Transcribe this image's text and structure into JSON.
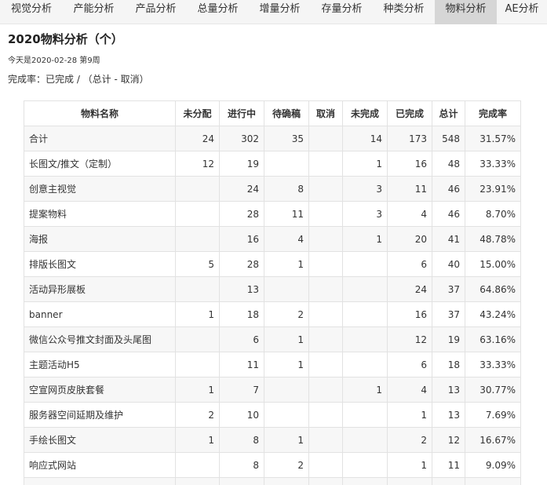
{
  "tabs": [
    {
      "label": "视觉分析",
      "active": false
    },
    {
      "label": "产能分析",
      "active": false
    },
    {
      "label": "产品分析",
      "active": false
    },
    {
      "label": "总量分析",
      "active": false
    },
    {
      "label": "增量分析",
      "active": false
    },
    {
      "label": "存量分析",
      "active": false
    },
    {
      "label": "种类分析",
      "active": false
    },
    {
      "label": "物料分析",
      "active": true
    },
    {
      "label": "AE分析",
      "active": false
    }
  ],
  "page_title": "2020物料分析（个）",
  "date_line": "今天是2020-02-28 第9周",
  "rate_line": "完成率：已完成 / （总计 - 取消）",
  "table": {
    "headers": [
      "物料名称",
      "未分配",
      "进行中",
      "待确稿",
      "取消",
      "未完成",
      "已完成",
      "总计",
      "完成率"
    ],
    "rows": [
      [
        "合计",
        "24",
        "302",
        "35",
        "",
        "14",
        "173",
        "548",
        "31.57%"
      ],
      [
        "长图文/推文（定制）",
        "12",
        "19",
        "",
        "",
        "1",
        "16",
        "48",
        "33.33%"
      ],
      [
        "创意主视觉",
        "",
        "24",
        "8",
        "",
        "3",
        "11",
        "46",
        "23.91%"
      ],
      [
        "提案物料",
        "",
        "28",
        "11",
        "",
        "3",
        "4",
        "46",
        "8.70%"
      ],
      [
        "海报",
        "",
        "16",
        "4",
        "",
        "1",
        "20",
        "41",
        "48.78%"
      ],
      [
        "排版长图文",
        "5",
        "28",
        "1",
        "",
        "",
        "6",
        "40",
        "15.00%"
      ],
      [
        "活动异形展板",
        "",
        "13",
        "",
        "",
        "",
        "24",
        "37",
        "64.86%"
      ],
      [
        "banner",
        "1",
        "18",
        "2",
        "",
        "",
        "16",
        "37",
        "43.24%"
      ],
      [
        "微信公众号推文封面及头尾图",
        "",
        "6",
        "1",
        "",
        "",
        "12",
        "19",
        "63.16%"
      ],
      [
        "主题活动H5",
        "",
        "11",
        "1",
        "",
        "",
        "6",
        "18",
        "33.33%"
      ],
      [
        "空宣网页皮肤套餐",
        "1",
        "7",
        "",
        "",
        "1",
        "4",
        "13",
        "30.77%"
      ],
      [
        "服务器空间延期及维护",
        "2",
        "10",
        "",
        "",
        "",
        "1",
        "13",
        "7.69%"
      ],
      [
        "手绘长图文",
        "1",
        "8",
        "1",
        "",
        "",
        "2",
        "12",
        "16.67%"
      ],
      [
        "响应式网站",
        "",
        "8",
        "2",
        "",
        "",
        "1",
        "11",
        "9.09%"
      ],
      [
        "",
        "",
        "",
        "",
        "",
        "",
        "",
        "",
        ""
      ]
    ]
  }
}
